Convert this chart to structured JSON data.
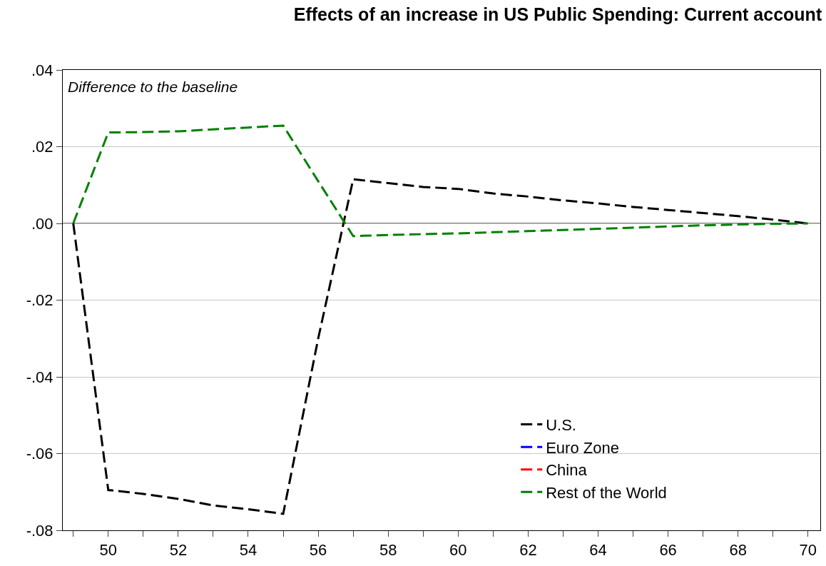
{
  "chart_data": {
    "type": "line",
    "title": "Effects of an increase in US Public Spending: Current account",
    "annotations": [
      "Difference to the baseline"
    ],
    "x": [
      49,
      50,
      51,
      52,
      53,
      54,
      55,
      56,
      57,
      58,
      59,
      60,
      61,
      62,
      63,
      64,
      65,
      66,
      67,
      68,
      69,
      70
    ],
    "series": [
      {
        "name": "U.S.",
        "color": "#000000",
        "values": [
          0,
          -0.0695,
          -0.0705,
          -0.0718,
          -0.0735,
          -0.0745,
          -0.0757,
          -0.03,
          0.0115,
          0.0105,
          0.0095,
          0.009,
          0.0078,
          0.007,
          0.006,
          0.0052,
          0.0043,
          0.0035,
          0.0027,
          0.0019,
          0.001,
          0
        ]
      },
      {
        "name": "Euro Zone",
        "color": "#0000ff",
        "values": [
          null,
          null,
          null,
          null,
          null,
          null,
          null,
          null,
          null,
          null,
          null,
          null,
          null,
          null,
          null,
          null,
          null,
          null,
          null,
          null,
          null,
          null
        ]
      },
      {
        "name": "China",
        "color": "#ff0000",
        "values": [
          null,
          null,
          null,
          null,
          null,
          null,
          null,
          null,
          null,
          null,
          null,
          null,
          null,
          null,
          null,
          null,
          null,
          null,
          null,
          null,
          null,
          null
        ]
      },
      {
        "name": "Rest of the World",
        "color": "#008000",
        "values": [
          0,
          0.0237,
          0.0238,
          0.024,
          0.0245,
          0.025,
          0.0255,
          0.011,
          -0.0033,
          -0.003,
          -0.0028,
          -0.0026,
          -0.0023,
          -0.002,
          -0.0017,
          -0.0014,
          -0.0011,
          -0.0008,
          -0.0005,
          -0.0003,
          -0.0001,
          0
        ]
      }
    ],
    "xlim": [
      48.7,
      70.35
    ],
    "xticks": [
      {
        "value": 49,
        "label": null
      },
      50,
      {
        "value": 51,
        "label": null
      },
      52,
      {
        "value": 53,
        "label": null
      },
      54,
      {
        "value": 55,
        "label": null
      },
      56,
      {
        "value": 57,
        "label": null
      },
      58,
      {
        "value": 59,
        "label": null
      },
      60,
      {
        "value": 61,
        "label": null
      },
      62,
      {
        "value": 63,
        "label": null
      },
      64,
      {
        "value": 65,
        "label": null
      },
      66,
      {
        "value": 67,
        "label": null
      },
      68,
      {
        "value": 69,
        "label": null
      },
      70
    ],
    "ylim": [
      -0.08,
      0.04
    ],
    "yticks": [
      {
        "value": -0.08,
        "label": "-.08"
      },
      {
        "value": -0.06,
        "label": "-.06"
      },
      {
        "value": -0.04,
        "label": "-.04"
      },
      {
        "value": -0.02,
        "label": "-.02"
      },
      {
        "value": 0,
        "label": ".00"
      },
      {
        "value": 0.02,
        "label": ".02"
      },
      {
        "value": 0.04,
        "label": ".04"
      }
    ],
    "ref_lines": [
      {
        "axis": "y",
        "value": 0,
        "color": "#000000"
      }
    ],
    "grid": "y",
    "legend": "bottom right",
    "line_style": "dashed",
    "marker": "none"
  }
}
